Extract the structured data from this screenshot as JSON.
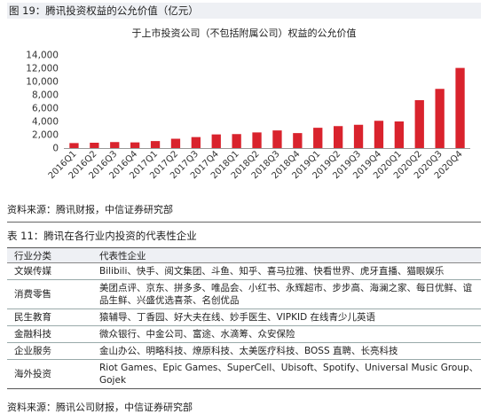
{
  "figure": {
    "label": "图 19：腾讯投资权益的公允价值（亿元）",
    "source": "资料来源：腾讯财报，中信证券研究部"
  },
  "chart_data": {
    "type": "bar",
    "title": "于上市投资公司（不包括附属公司）权益的公允价值",
    "categories": [
      "2016Q1",
      "2016Q2",
      "2016Q3",
      "2016Q4",
      "2017Q1",
      "2017Q2",
      "2017Q3",
      "2017Q4",
      "2018Q1",
      "2018Q2",
      "2018Q3",
      "2018Q4",
      "2019Q1",
      "2019Q2",
      "2019Q3",
      "2019Q4",
      "2020Q1",
      "2020Q2",
      "2020Q3",
      "2020Q4"
    ],
    "values": [
      750,
      800,
      900,
      850,
      1050,
      1400,
      1650,
      2050,
      2100,
      2350,
      2650,
      2250,
      3050,
      3300,
      3500,
      4100,
      4000,
      7200,
      8900,
      12050
    ],
    "ylim": [
      0,
      14000
    ],
    "yticks": [
      "0",
      "2,000",
      "4,000",
      "6,000",
      "8,000",
      "10,000",
      "12,000",
      "14,000"
    ],
    "grid": false,
    "bar_color": "#d9232d"
  },
  "table": {
    "label": "表 11：腾讯在各行业内投资的代表性企业",
    "headers": [
      "行业分类",
      "代表性企业"
    ],
    "rows": [
      [
        "文娱传媒",
        "Bilibili、快手、阅文集团、斗鱼、知乎、喜马拉雅、快看世界、虎牙直播、猫眼娱乐"
      ],
      [
        "消费零售",
        "美团点评、京东、拼多多、唯品会、小红书、永辉超市、步步高、海澜之家、每日优鲜、谊品生鲜、兴盛优选喜茶、名创优品"
      ],
      [
        "民生教育",
        "猿辅导、丁香园、好大夫在线、妙手医生、VIPKID 在线青少儿英语"
      ],
      [
        "金融科技",
        "微众银行、中金公司、富途、水滴筹、众安保险"
      ],
      [
        "企业服务",
        "金山办公、明略科技、燎原科技、太美医疗科技、BOSS 直聘、长亮科技"
      ],
      [
        "海外投资",
        "Riot Games、Epic Games、SuperCell、Ubisoft、Spotify、Universal Music Group、Gojek"
      ]
    ],
    "source": "资料来源：腾讯公司财报，中信证券研究部"
  }
}
